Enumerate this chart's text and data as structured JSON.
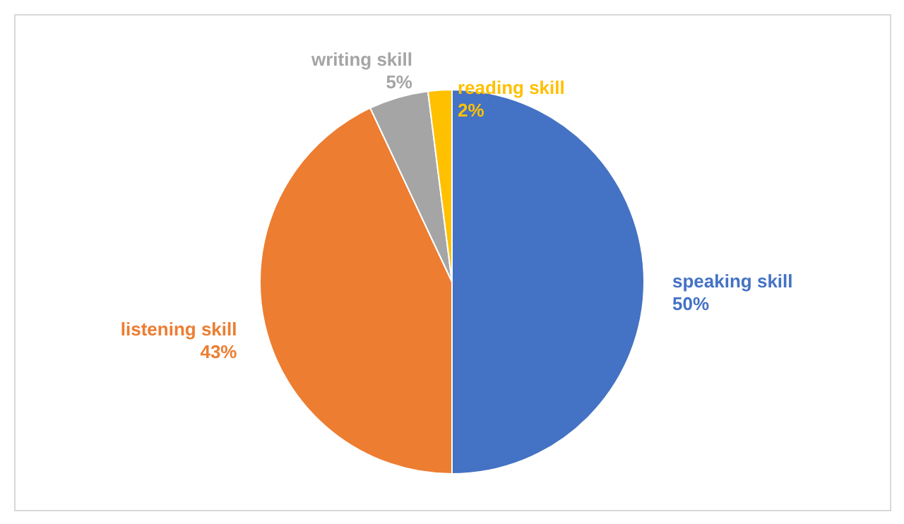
{
  "chart_data": {
    "type": "pie",
    "categories": [
      "speaking skill",
      "listening skill",
      "writing skill",
      "reading skill"
    ],
    "values": [
      50,
      43,
      5,
      2
    ],
    "value_labels": [
      "50%",
      "43%",
      "5%",
      "2%"
    ],
    "colors": [
      "#4472c4",
      "#ed7d31",
      "#a5a5a5",
      "#ffc000"
    ],
    "legend": false
  }
}
